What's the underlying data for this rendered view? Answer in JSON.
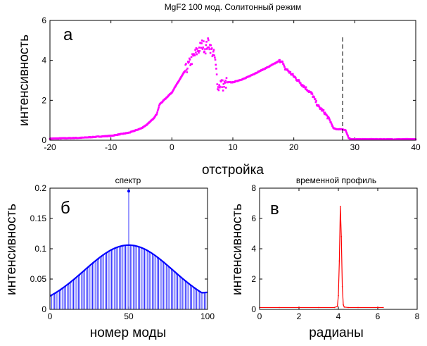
{
  "chart_data": [
    {
      "type": "scatter",
      "title": "MgF2 100 мод. Солитонный режим",
      "panel_label": "а",
      "xlabel": "отстройка",
      "ylabel": "интенсивность",
      "xlim": [
        -20,
        40
      ],
      "ylim": [
        0,
        6
      ],
      "xticks": [
        "-20",
        "-10",
        "0",
        "10",
        "20",
        "30",
        "40"
      ],
      "yticks": [
        "0",
        "2",
        "4",
        "6"
      ],
      "grid": false,
      "color": "#ff00ff",
      "marker_line": {
        "x": 28,
        "y_top": 5.2,
        "style": "dashed"
      },
      "series": [
        {
          "x": [
            -20,
            -15,
            -10,
            -7,
            -5,
            -4,
            -3,
            -2.5,
            -2,
            -1,
            0,
            1,
            2,
            3,
            4,
            4.5,
            5,
            5.5,
            6,
            6.5,
            7,
            7.3,
            7.6,
            8,
            8.5,
            9,
            10,
            12,
            14,
            16,
            17.5,
            18,
            18.5,
            19,
            20,
            21,
            22,
            23,
            24,
            25,
            26,
            26.5,
            27,
            28,
            28.5,
            29,
            29.4,
            30,
            35,
            40
          ],
          "y": [
            0.08,
            0.12,
            0.22,
            0.38,
            0.6,
            0.8,
            1.1,
            1.3,
            1.8,
            2.1,
            2.4,
            2.9,
            3.4,
            3.9,
            4.4,
            4.6,
            4.8,
            4.6,
            4.9,
            4.5,
            4.2,
            3.4,
            2.6,
            2.9,
            2.7,
            2.9,
            2.9,
            3.1,
            3.4,
            3.7,
            3.95,
            4.0,
            3.6,
            3.5,
            3.2,
            2.9,
            2.6,
            2.3,
            1.7,
            1.4,
            0.95,
            0.6,
            0.55,
            0.55,
            0.5,
            0.1,
            0.05,
            0.05,
            0.05,
            0.05
          ]
        }
      ]
    },
    {
      "type": "bar",
      "title": "спектр",
      "panel_label": "б",
      "xlabel": "номер моды",
      "ylabel": "интенсивность",
      "xlim": [
        0,
        100
      ],
      "ylim": [
        0,
        0.2
      ],
      "xticks": [
        "0",
        "50",
        "100"
      ],
      "yticks": [
        "0",
        "0.05",
        "0.1",
        "0.15",
        "0.2"
      ],
      "grid": false,
      "color": "#0000ff",
      "gaussian_envelope": {
        "peak": 0.106,
        "center": 50,
        "edge_value_at_0": 0.022,
        "edge_value_at_100": 0.028
      },
      "spike": {
        "mode": 50,
        "value": 0.195
      }
    },
    {
      "type": "line",
      "title": "временной профиль",
      "panel_label": "в",
      "xlabel": "радианы",
      "ylabel": "интенсивность",
      "xlim": [
        0,
        8
      ],
      "ylim": [
        0,
        8
      ],
      "xticks": [
        "0",
        "2",
        "4",
        "6",
        "8"
      ],
      "yticks": [
        "0",
        "2",
        "4",
        "6",
        "8"
      ],
      "grid": false,
      "color": "#ff0000",
      "series": [
        {
          "x": [
            0,
            1,
            2,
            3,
            3.8,
            3.95,
            4.0,
            4.05,
            4.1,
            4.15,
            4.2,
            4.25,
            4.3,
            4.5,
            5,
            6,
            6.28
          ],
          "y": [
            0.12,
            0.12,
            0.12,
            0.12,
            0.12,
            0.2,
            0.9,
            3.2,
            6.8,
            4.8,
            1.5,
            0.3,
            0.15,
            0.12,
            0.12,
            0.12,
            0.12
          ]
        }
      ]
    }
  ]
}
